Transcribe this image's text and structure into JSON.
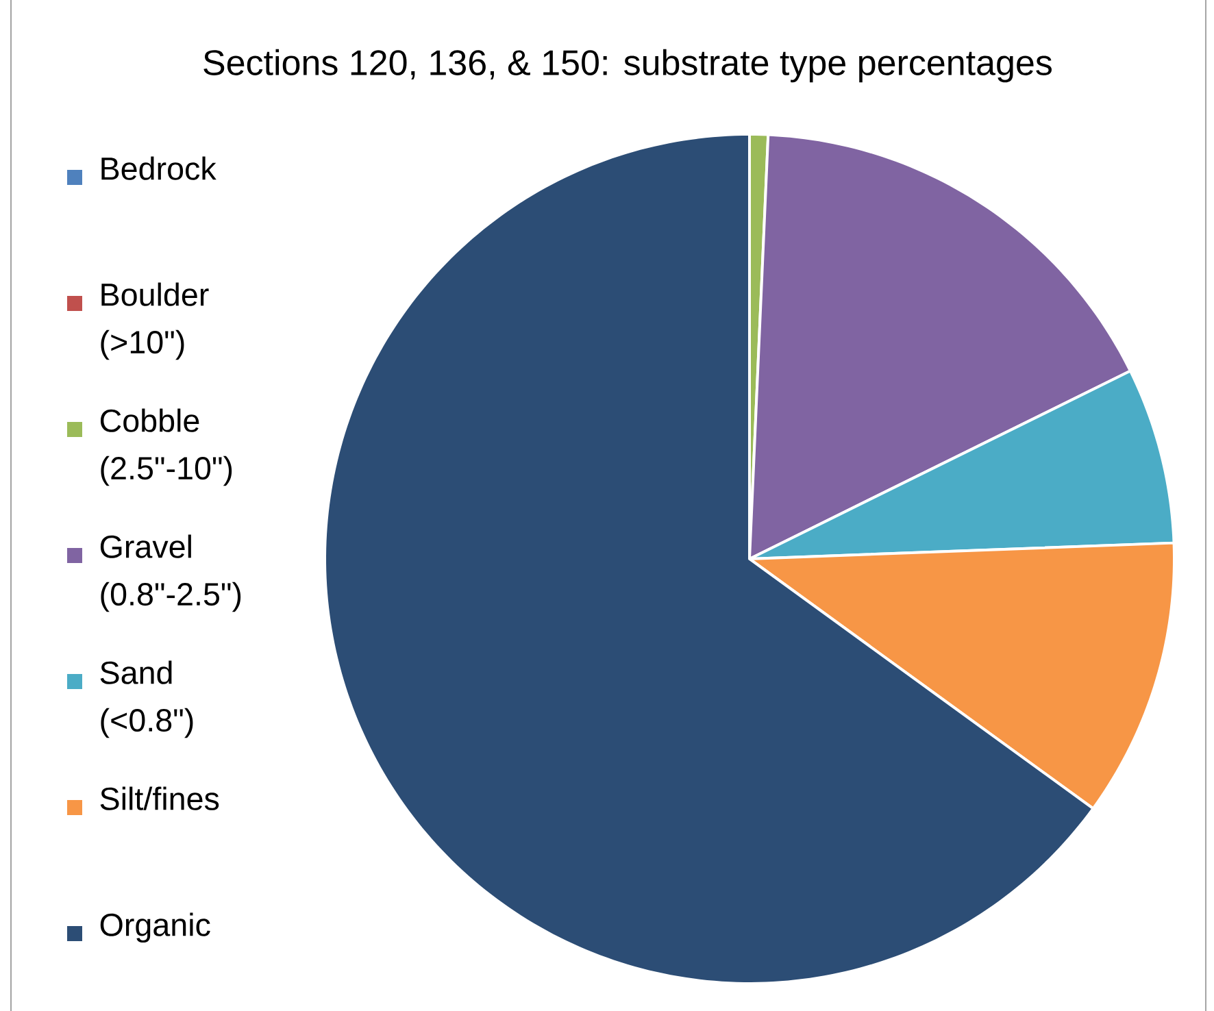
{
  "chart_data": {
    "type": "pie",
    "title": "Sections 120, 136, & 150: substrate type percentages",
    "categories": [
      "Bedrock",
      "Boulder (>10\")",
      "Cobble (2.5\"-10\")",
      "Gravel (0.8\"-2.5\")",
      "Sand (<0.8\")",
      "Silt/fines",
      "Organic"
    ],
    "values": [
      0,
      0,
      0.7,
      17.0,
      6.7,
      10.6,
      65.0
    ],
    "colors": [
      "#4f81bd",
      "#c0504d",
      "#9bbb59",
      "#8064a2",
      "#4bacc6",
      "#f79646",
      "#2c4d75"
    ],
    "legend": "left"
  }
}
